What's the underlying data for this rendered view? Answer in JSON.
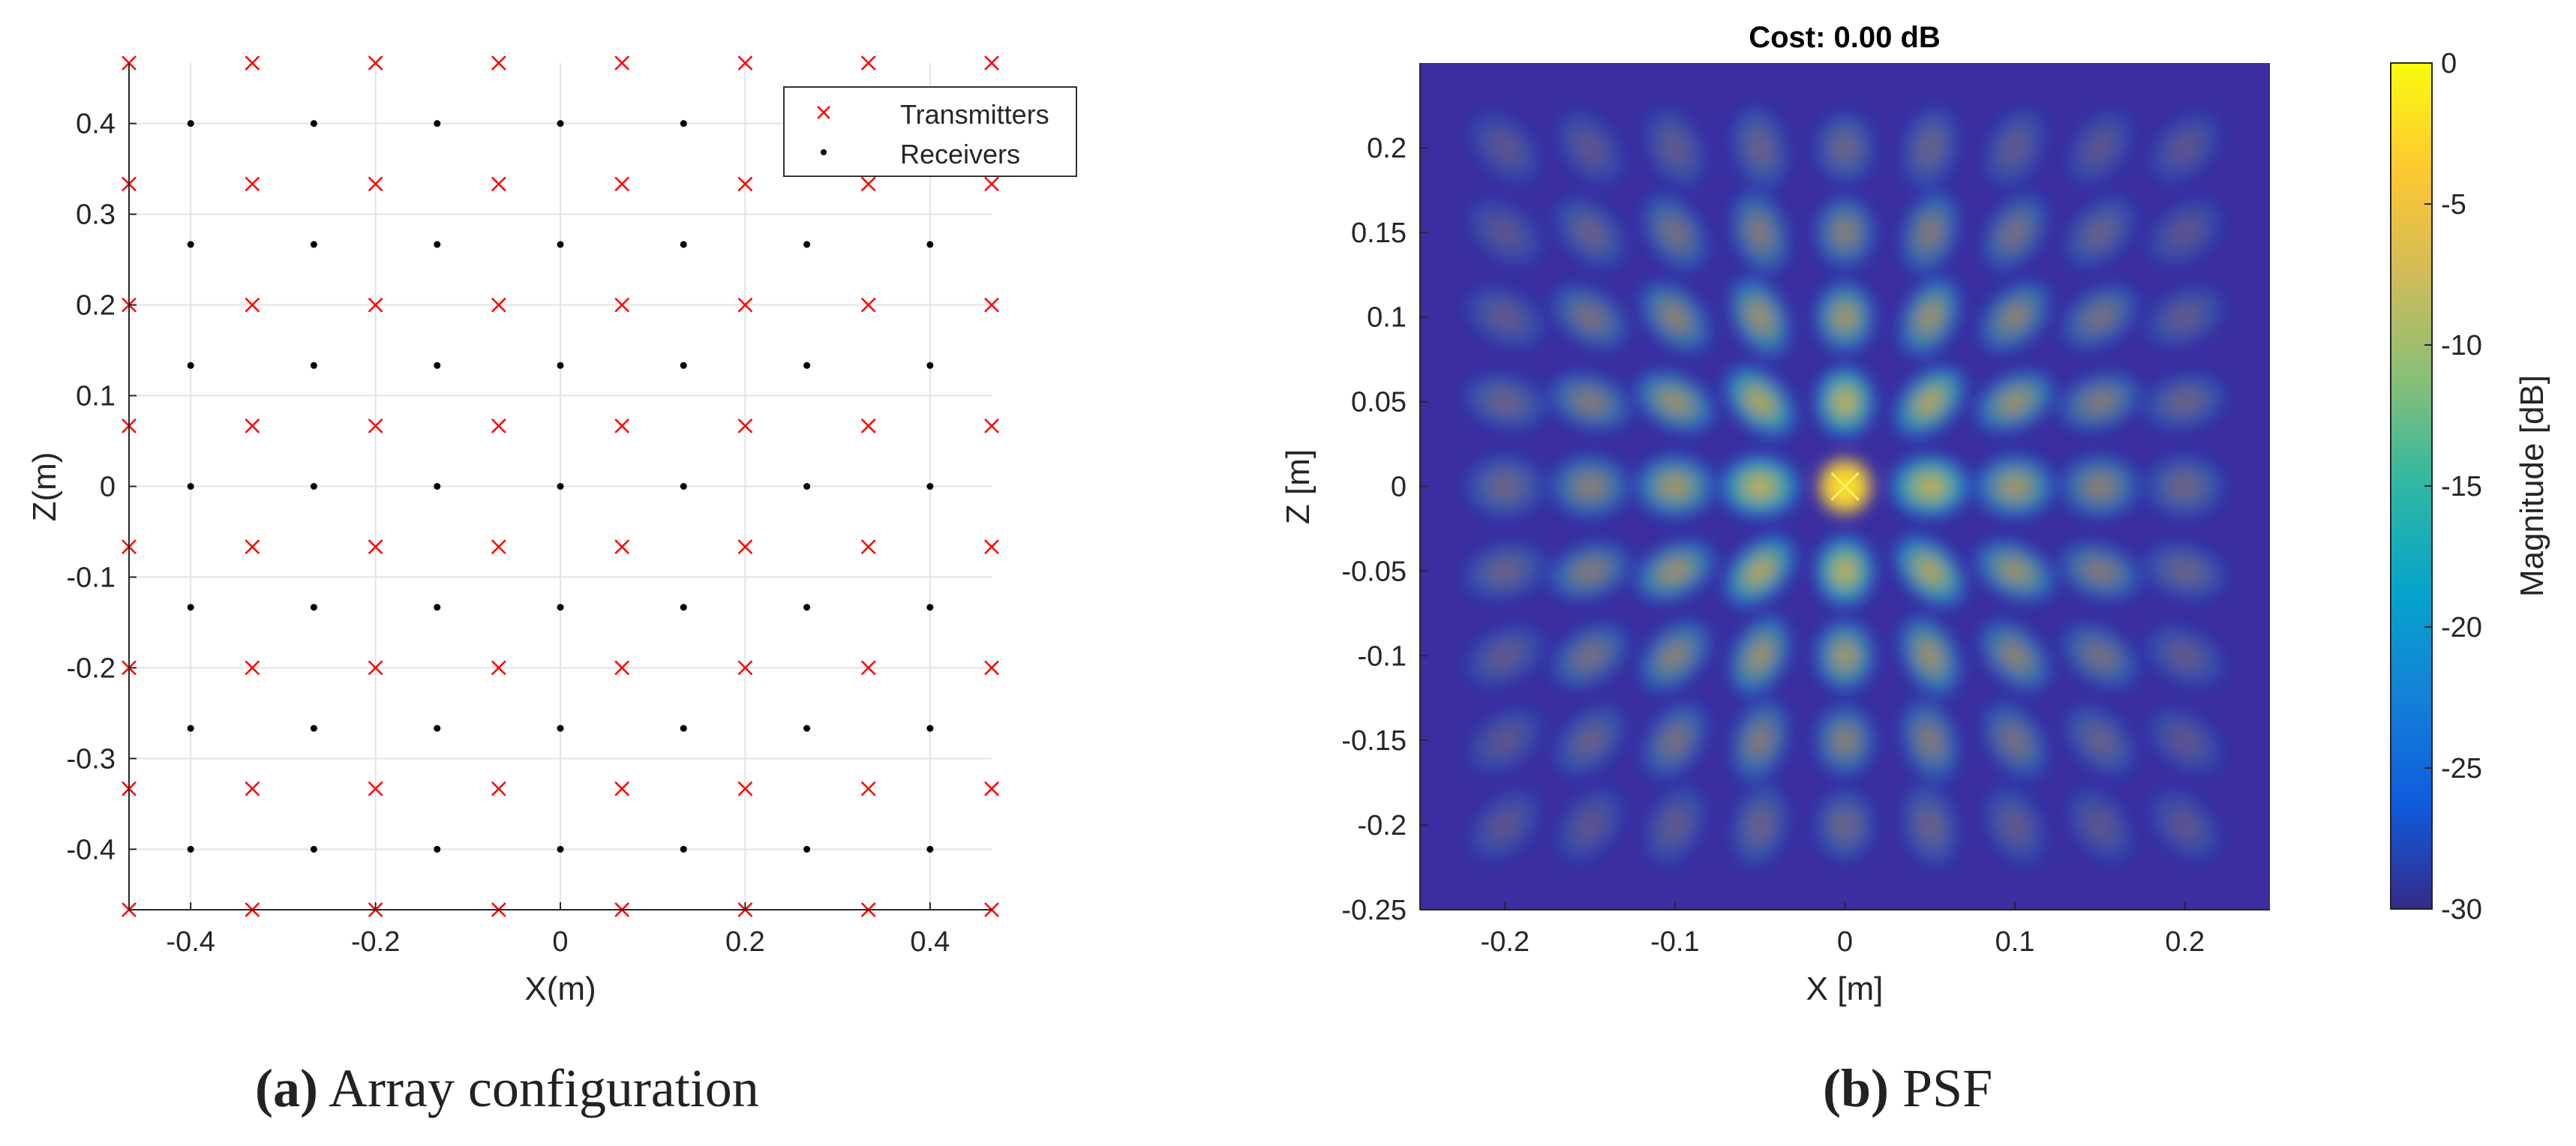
{
  "chart_data": [
    {
      "type": "scatter",
      "xlabel": "X(m)",
      "ylabel": "Z(m)",
      "xlim": [
        -0.4667,
        0.4667
      ],
      "ylim": [
        -0.4667,
        0.4667
      ],
      "xticks": [
        "-0.4",
        "-0.2",
        "0",
        "0.2",
        "0.4"
      ],
      "yticks": [
        "0.4",
        "0.3",
        "0.2",
        "0.1",
        "0",
        "-0.1",
        "-0.2",
        "-0.3",
        "-0.4"
      ],
      "grid": true,
      "legend_position": "top-right",
      "series": [
        {
          "name": "Transmitters",
          "marker": "x",
          "color": "#ff0000",
          "grid_values": [
            -0.4667,
            -0.3333,
            -0.2,
            -0.0667,
            0.0667,
            0.2,
            0.3333,
            0.4667
          ]
        },
        {
          "name": "Receivers",
          "marker": "dot",
          "color": "#000000",
          "grid_values": [
            -0.4,
            -0.2667,
            -0.1333,
            0,
            0.1333,
            0.2667,
            0.4
          ]
        }
      ]
    },
    {
      "type": "heatmap",
      "title": "Cost: 0.00 dB",
      "xlabel": "X [m]",
      "ylabel": "Z [m]",
      "xlim": [
        -0.25,
        0.25
      ],
      "ylim": [
        -0.25,
        0.25
      ],
      "xticks": [
        "-0.2",
        "-0.1",
        "0",
        "0.1",
        "0.2"
      ],
      "yticks": [
        "0.2",
        "0.15",
        "0.1",
        "0.05",
        "0",
        "-0.05",
        "-0.1",
        "-0.15",
        "-0.2",
        "-0.25"
      ],
      "colorbar_label": "Magnitude [dB]",
      "colorbar_range": [
        -30,
        0
      ],
      "colorbar_ticks": [
        "0",
        "-5",
        "-10",
        "-15",
        "-20",
        "-25",
        "-30"
      ],
      "colormap": "parula",
      "lobe_spacing": 0.05,
      "peak_marker": "x"
    }
  ],
  "captions": {
    "a_label": "(a)",
    "a_text": " Array configuration",
    "b_label": "(b)",
    "b_text": " PSF"
  }
}
